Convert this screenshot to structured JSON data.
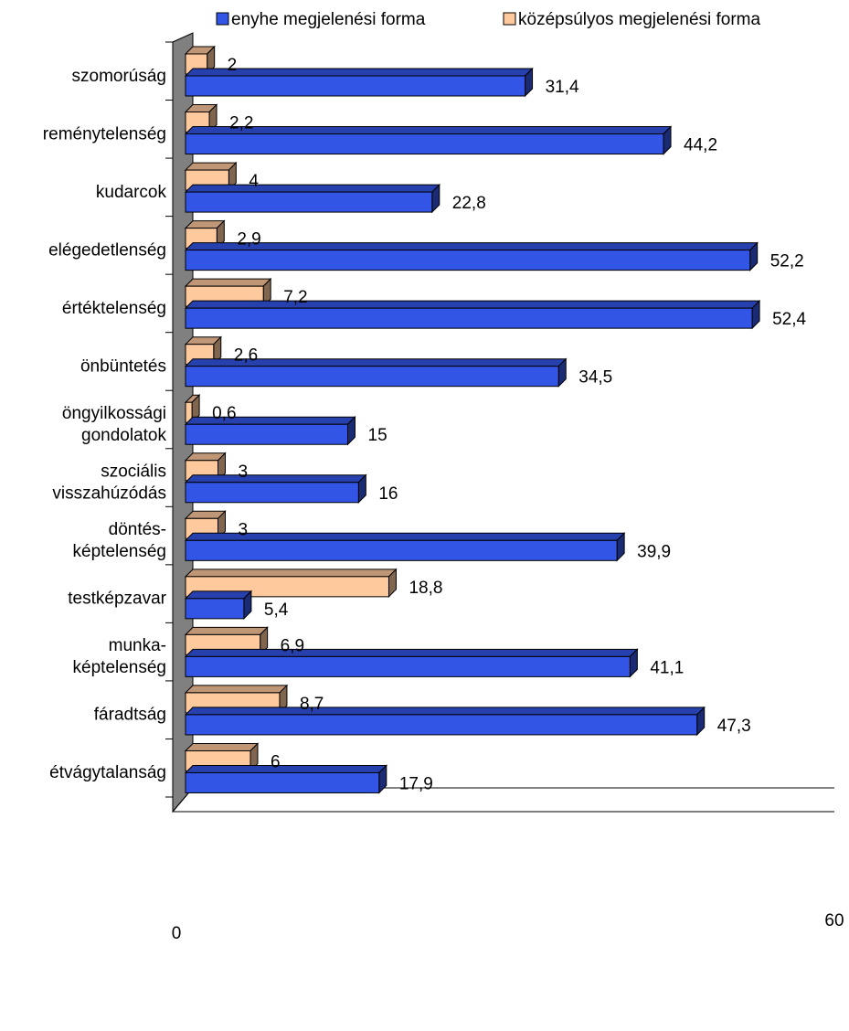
{
  "chart_data": {
    "type": "bar",
    "orientation": "horizontal",
    "style": "3d",
    "categories": [
      [
        "szomorúság"
      ],
      [
        "reménytelenség"
      ],
      [
        "kudarcok"
      ],
      [
        "elégedetlenség"
      ],
      [
        "értéktelenség"
      ],
      [
        "önbüntetés"
      ],
      [
        "öngyilkossági",
        "gondolatok"
      ],
      [
        "szociális",
        "visszahúzódás"
      ],
      [
        "döntés-",
        "képtelenség"
      ],
      [
        "testképzavar"
      ],
      [
        "munka-",
        "képtelenség"
      ],
      [
        "fáradtság"
      ],
      [
        "étvágytalanság"
      ]
    ],
    "series": [
      {
        "name": "enyhe megjelenési  forma",
        "color": "#3355e6",
        "values": [
          31.4,
          44.2,
          22.8,
          52.2,
          52.4,
          34.5,
          15,
          16,
          39.9,
          5.4,
          41.1,
          47.3,
          17.9
        ],
        "labels": [
          "31,4",
          "44,2",
          "22,8",
          "52,2",
          "52,4",
          "34,5",
          "15",
          "16",
          "39,9",
          "5,4",
          "41,1",
          "47,3",
          "17,9"
        ]
      },
      {
        "name": "középsúlyos megjelenési forma",
        "color": "#ffc99e",
        "values": [
          2,
          2.2,
          4,
          2.9,
          7.2,
          2.6,
          0.6,
          3,
          3,
          18.8,
          6.9,
          8.7,
          6
        ],
        "labels": [
          "2",
          "2,2",
          "4",
          "2,9",
          "7,2",
          "2,6",
          "0,6",
          "3",
          "3",
          "18,8",
          "6,9",
          "8,7",
          "6"
        ]
      }
    ],
    "xlim": [
      0,
      60
    ],
    "xticks": [
      "0",
      "60"
    ],
    "legend": "top",
    "title": "",
    "xlabel": "",
    "ylabel": "",
    "colors": {
      "wall": "#808080",
      "wall_edge": "#000000"
    }
  }
}
